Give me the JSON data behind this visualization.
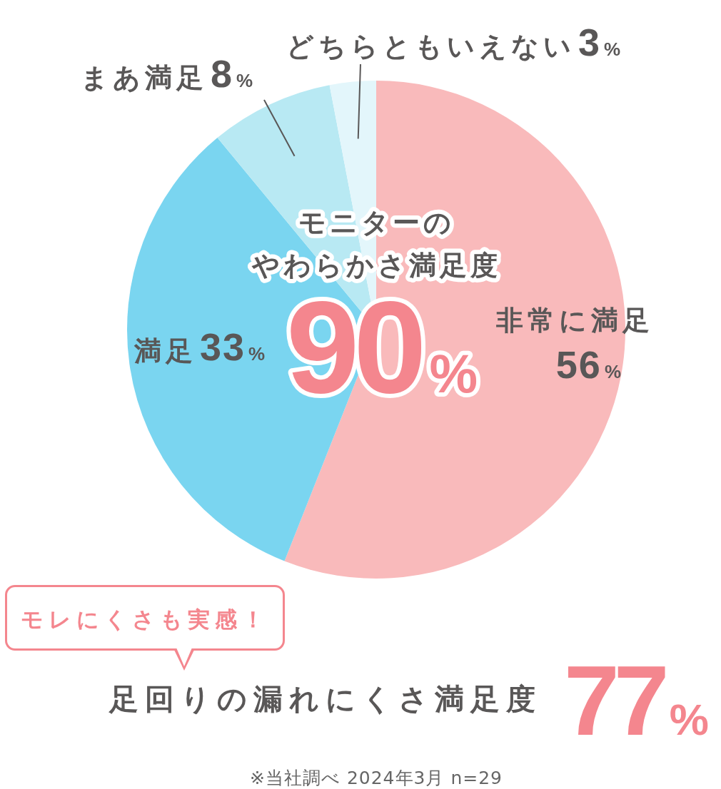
{
  "chart_data": {
    "type": "pie",
    "title": "モニターの",
    "subtitle": "やわらかさ満足度",
    "categories": [
      "非常に満足",
      "満足",
      "まあ満足",
      "どちらともいえない"
    ],
    "values": [
      56,
      33,
      8,
      3
    ],
    "colors": [
      "#f9babb",
      "#7ad5f0",
      "#b8e9f3",
      "#e3f6fb"
    ],
    "value_labels": [
      "56%",
      "33%",
      "8%",
      "3%"
    ],
    "annotations": [
      "90%",
      "モレにくさも実感！",
      "足回りの漏れにくさ満足度",
      "77%",
      "※当社調べ 2024年3月 n=29"
    ]
  }
}
